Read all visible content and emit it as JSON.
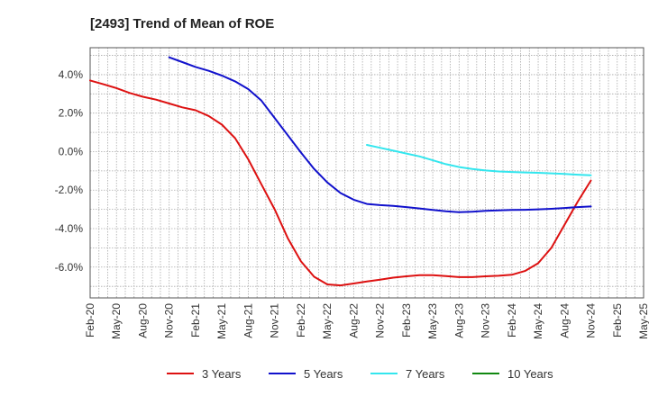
{
  "chart_data": {
    "type": "line",
    "title": "[2493]  Trend of Mean of ROE",
    "xlabel": "",
    "ylabel": "",
    "x_ticks": [
      "Feb-20",
      "May-20",
      "Aug-20",
      "Nov-20",
      "Feb-21",
      "May-21",
      "Aug-21",
      "Nov-21",
      "Feb-22",
      "May-22",
      "Aug-22",
      "Nov-22",
      "Feb-23",
      "May-23",
      "Aug-23",
      "Nov-23",
      "Feb-24",
      "May-24",
      "Aug-24",
      "Nov-24",
      "Feb-25",
      "May-25"
    ],
    "y_ticks": [
      "4.0%",
      "2.0%",
      "0.0%",
      "-2.0%",
      "-4.0%",
      "-6.0%"
    ],
    "y_tick_values": [
      4,
      2,
      0,
      -2,
      -4,
      -6
    ],
    "ylim": [
      -7.6,
      5.4
    ],
    "grid": true,
    "legend_position": "bottom",
    "series": [
      {
        "name": "3 Years",
        "color": "#dd1111",
        "points": [
          [
            0,
            3.7
          ],
          [
            1,
            3.5
          ],
          [
            2,
            3.3
          ],
          [
            3,
            3.05
          ],
          [
            4,
            2.85
          ],
          [
            5,
            2.7
          ],
          [
            6,
            2.5
          ],
          [
            7,
            2.3
          ],
          [
            8,
            2.15
          ],
          [
            9,
            1.85
          ],
          [
            10,
            1.4
          ],
          [
            11,
            0.7
          ],
          [
            12,
            -0.4
          ],
          [
            13,
            -1.7
          ],
          [
            14,
            -3.0
          ],
          [
            15,
            -4.5
          ],
          [
            16,
            -5.7
          ],
          [
            17,
            -6.5
          ],
          [
            18,
            -6.9
          ],
          [
            19,
            -6.95
          ],
          [
            20,
            -6.85
          ],
          [
            21,
            -6.75
          ],
          [
            22,
            -6.65
          ],
          [
            23,
            -6.55
          ],
          [
            24,
            -6.48
          ],
          [
            25,
            -6.42
          ],
          [
            26,
            -6.42
          ],
          [
            27,
            -6.47
          ],
          [
            28,
            -6.52
          ],
          [
            29,
            -6.52
          ],
          [
            30,
            -6.48
          ],
          [
            31,
            -6.45
          ],
          [
            32,
            -6.4
          ],
          [
            33,
            -6.2
          ],
          [
            34,
            -5.8
          ],
          [
            35,
            -5.0
          ],
          [
            36,
            -3.8
          ],
          [
            37,
            -2.6
          ],
          [
            38,
            -1.5
          ]
        ]
      },
      {
        "name": "5 Years",
        "color": "#1111cc",
        "points": [
          [
            6,
            4.9
          ],
          [
            7,
            4.65
          ],
          [
            8,
            4.4
          ],
          [
            9,
            4.2
          ],
          [
            10,
            3.95
          ],
          [
            11,
            3.65
          ],
          [
            12,
            3.25
          ],
          [
            13,
            2.65
          ],
          [
            14,
            1.75
          ],
          [
            15,
            0.85
          ],
          [
            16,
            -0.05
          ],
          [
            17,
            -0.9
          ],
          [
            18,
            -1.6
          ],
          [
            19,
            -2.15
          ],
          [
            20,
            -2.5
          ],
          [
            21,
            -2.72
          ],
          [
            22,
            -2.78
          ],
          [
            23,
            -2.82
          ],
          [
            24,
            -2.88
          ],
          [
            25,
            -2.95
          ],
          [
            26,
            -3.03
          ],
          [
            27,
            -3.1
          ],
          [
            28,
            -3.15
          ],
          [
            29,
            -3.12
          ],
          [
            30,
            -3.08
          ],
          [
            31,
            -3.05
          ],
          [
            32,
            -3.03
          ],
          [
            33,
            -3.02
          ],
          [
            34,
            -3.0
          ],
          [
            35,
            -2.97
          ],
          [
            36,
            -2.93
          ],
          [
            37,
            -2.88
          ],
          [
            38,
            -2.85
          ]
        ]
      },
      {
        "name": "7 Years",
        "color": "#33e6ee",
        "points": [
          [
            21,
            0.35
          ],
          [
            22,
            0.2
          ],
          [
            23,
            0.05
          ],
          [
            24,
            -0.1
          ],
          [
            25,
            -0.25
          ],
          [
            26,
            -0.45
          ],
          [
            27,
            -0.65
          ],
          [
            28,
            -0.8
          ],
          [
            29,
            -0.9
          ],
          [
            30,
            -0.98
          ],
          [
            31,
            -1.03
          ],
          [
            32,
            -1.06
          ],
          [
            33,
            -1.08
          ],
          [
            34,
            -1.1
          ],
          [
            35,
            -1.13
          ],
          [
            36,
            -1.16
          ],
          [
            37,
            -1.2
          ],
          [
            38,
            -1.23
          ]
        ]
      },
      {
        "name": "10 Years",
        "color": "#118811",
        "points": []
      }
    ]
  }
}
